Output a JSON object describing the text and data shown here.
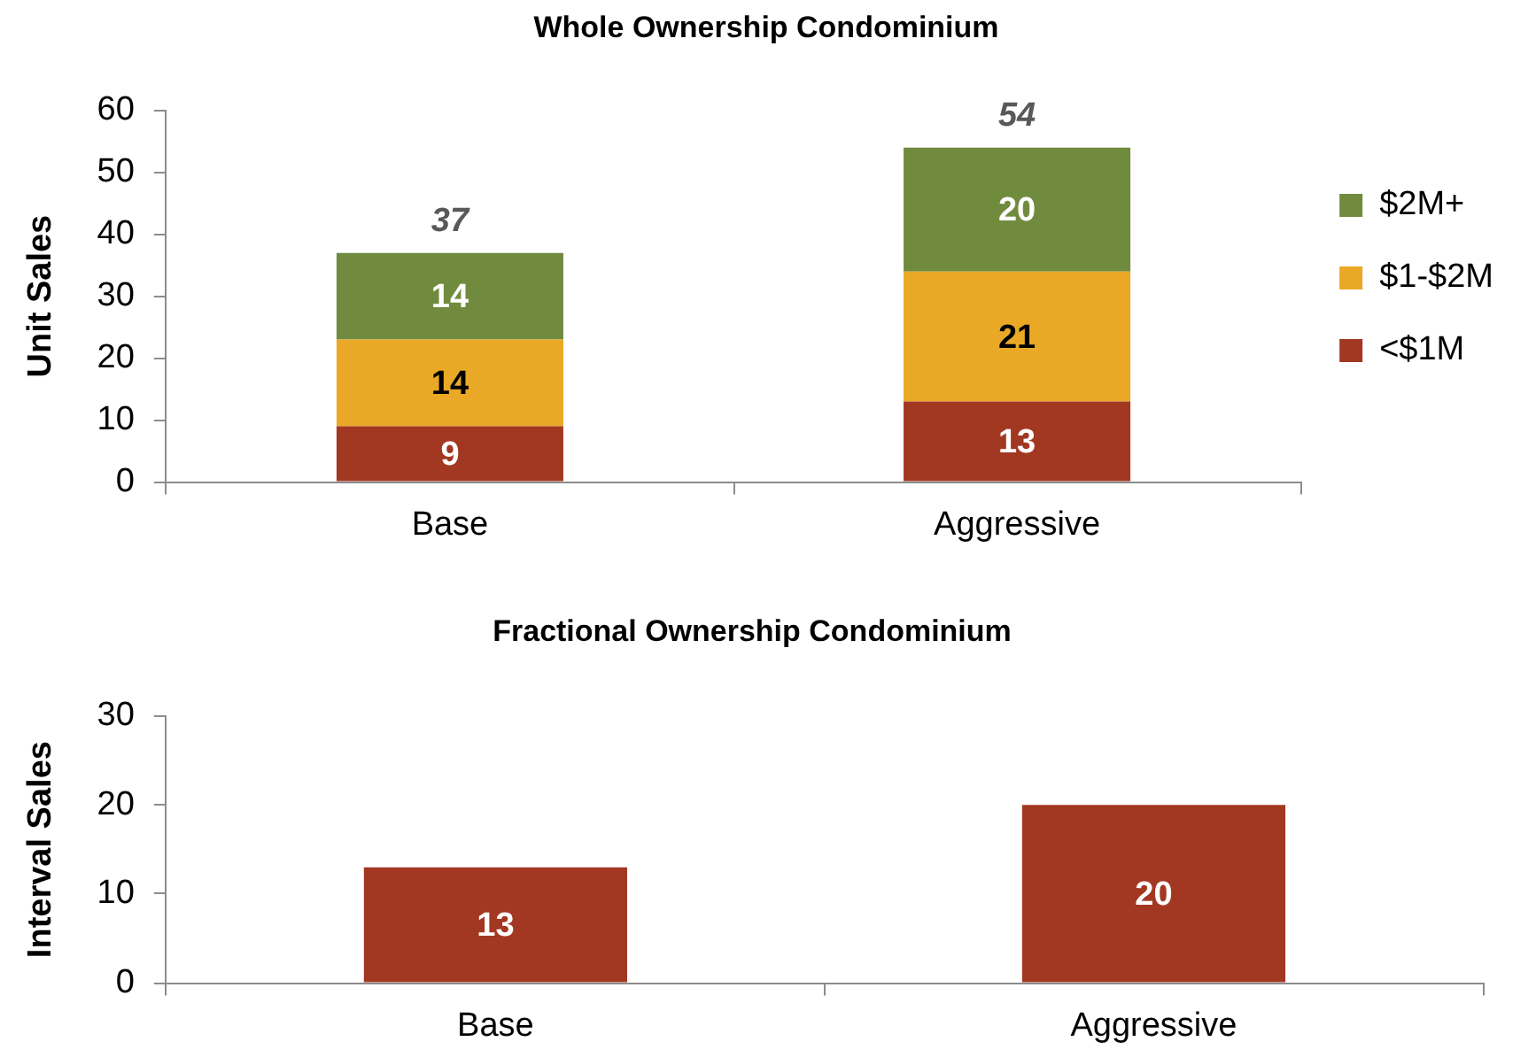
{
  "chart_data": [
    {
      "type": "bar",
      "title": "Whole Ownership Condominium",
      "ylabel": "Unit Sales",
      "categories": [
        "Base",
        "Aggressive"
      ],
      "stacked": true,
      "series": [
        {
          "name": "<$1M",
          "color": "#a33822",
          "values": [
            9,
            13
          ]
        },
        {
          "name": "$1-$2M",
          "color": "#e9a825",
          "values": [
            14,
            21
          ]
        },
        {
          "name": "$2M+",
          "color": "#718b3e",
          "values": [
            14,
            20
          ]
        }
      ],
      "totals": [
        "37",
        "54"
      ],
      "data_labels": true,
      "ylim": [
        0,
        60
      ],
      "yticks": [
        0,
        10,
        20,
        30,
        40,
        50,
        60
      ],
      "legend": "right"
    },
    {
      "type": "bar",
      "title": "Fractional Ownership Condominium",
      "ylabel": "Interval Sales",
      "categories": [
        "Base",
        "Aggressive"
      ],
      "values": [
        13,
        20
      ],
      "color": "#a33822",
      "data_labels": true,
      "ylim": [
        0,
        30
      ],
      "yticks": [
        0,
        10,
        20,
        30
      ]
    }
  ]
}
